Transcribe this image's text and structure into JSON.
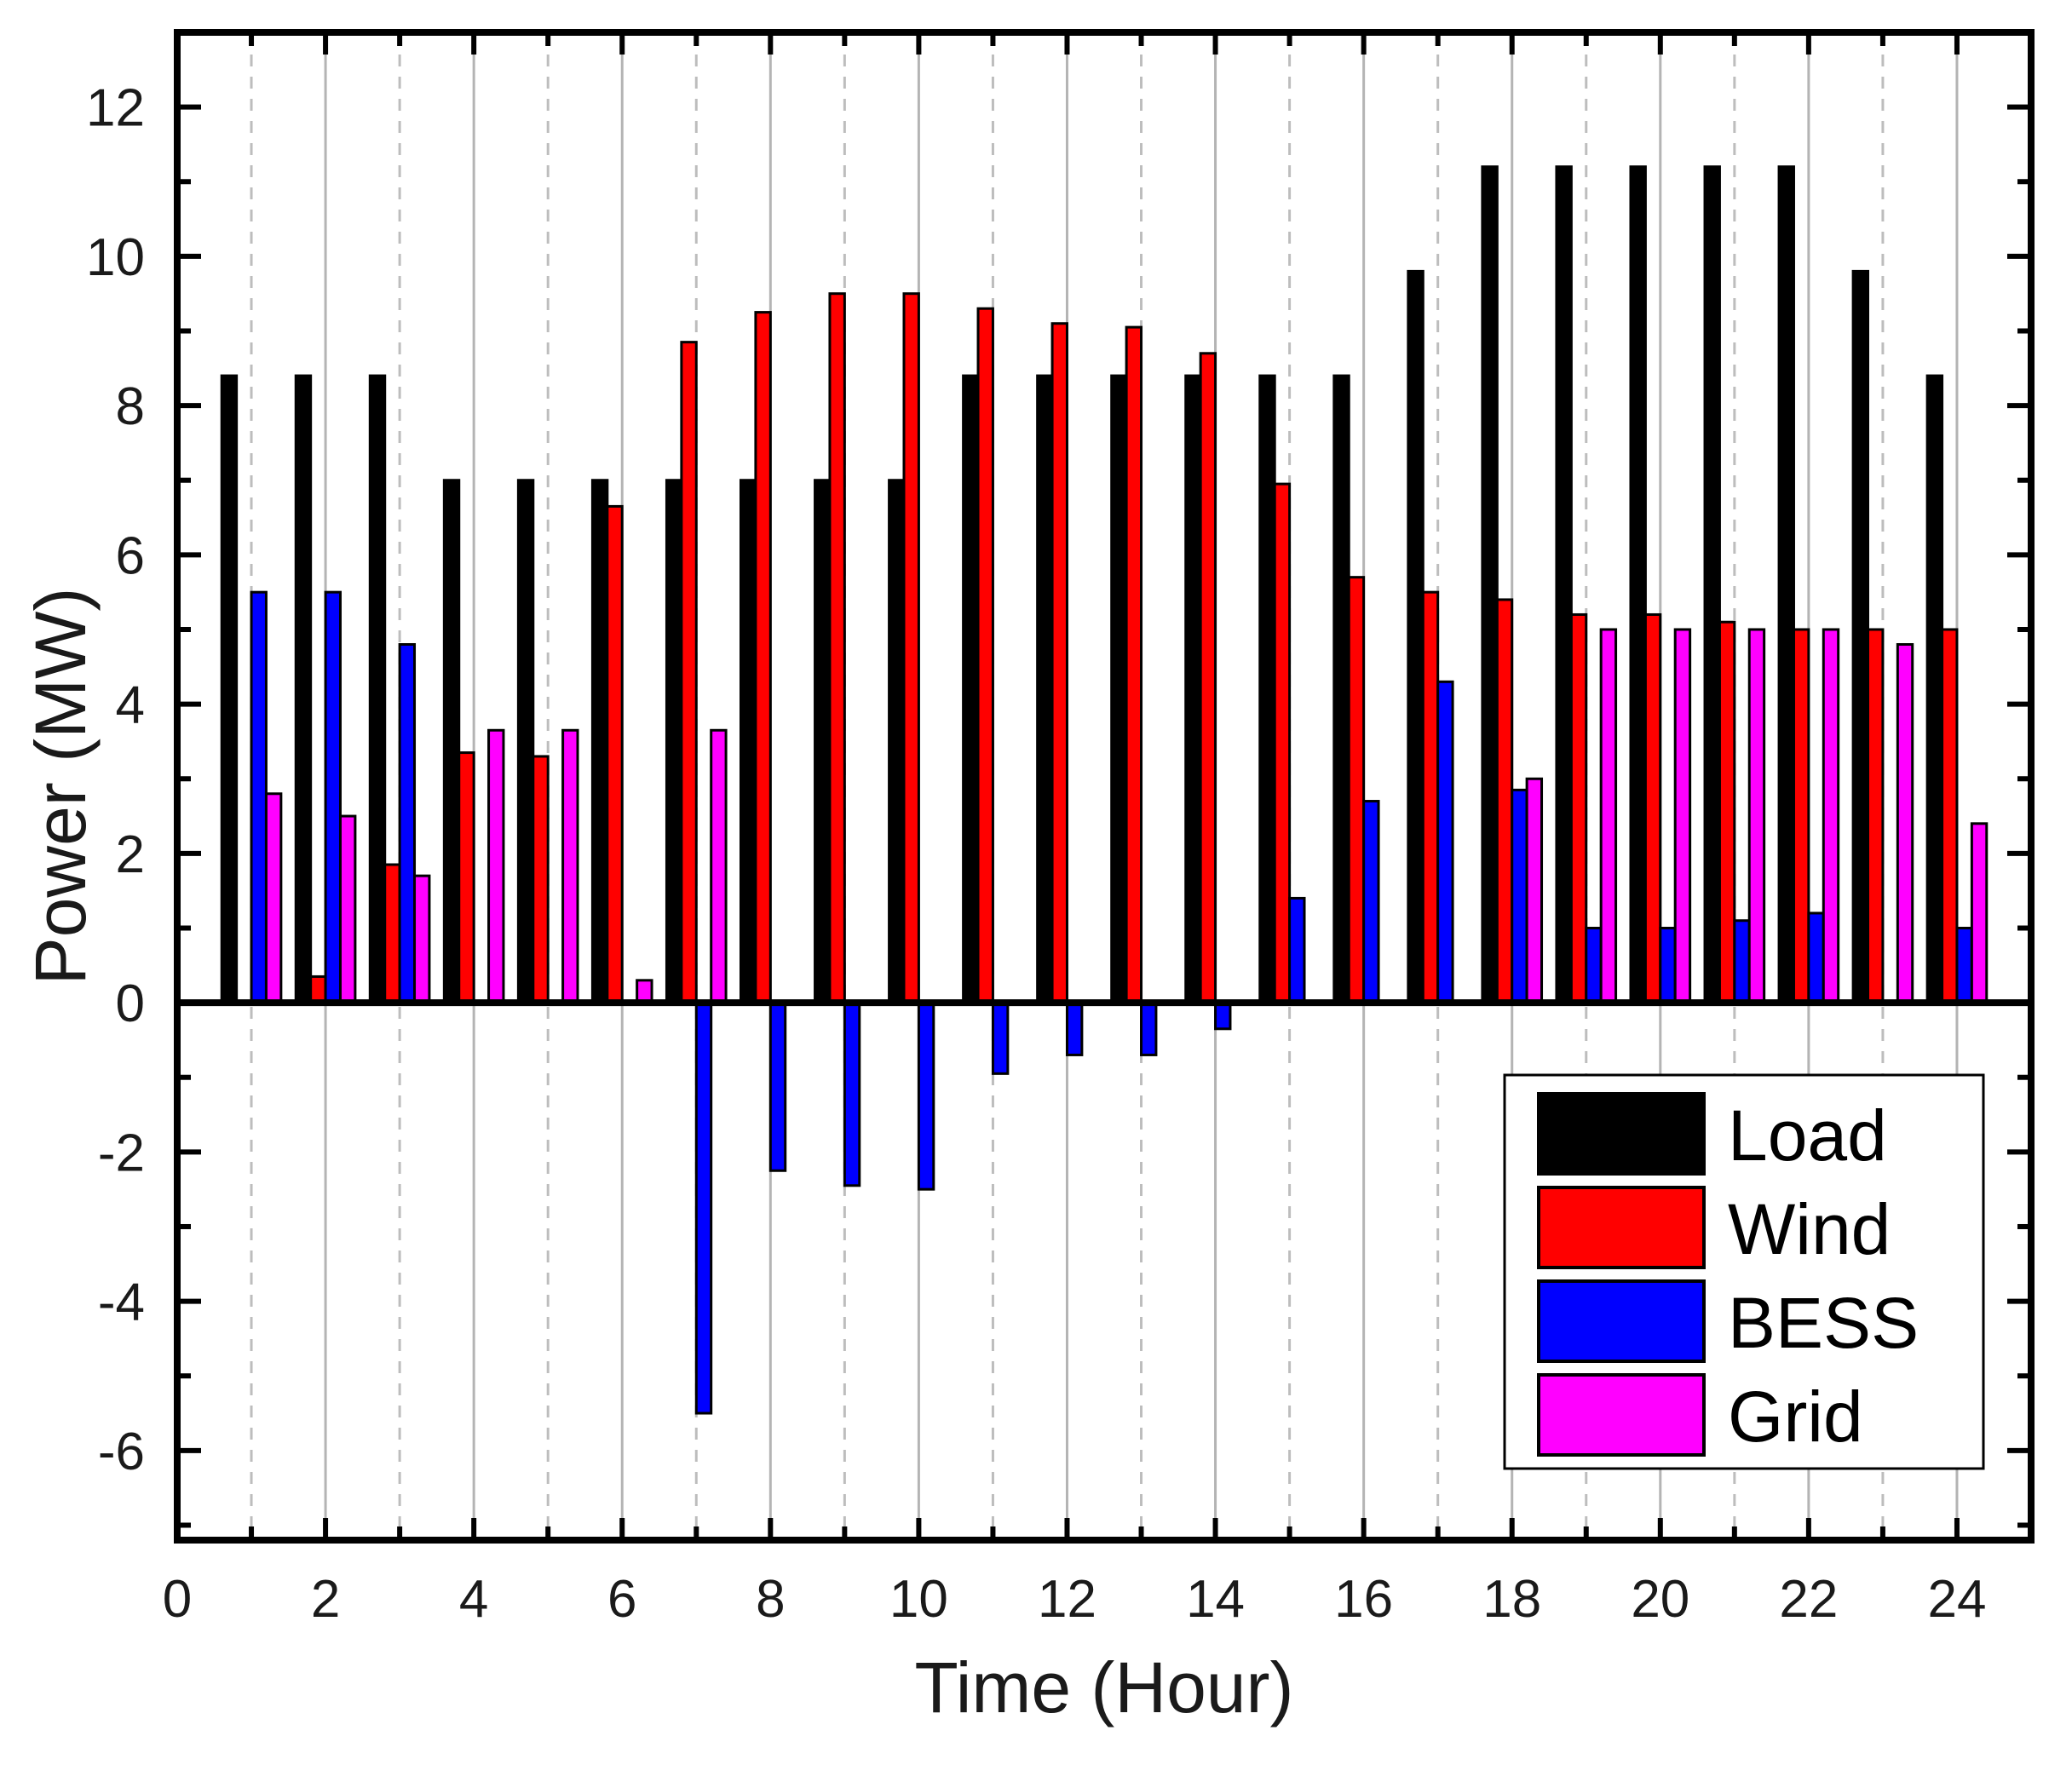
{
  "chart_data": {
    "type": "bar",
    "title": "",
    "xlabel": "Time (Hour)",
    "ylabel": "Power (MW)",
    "xlim": [
      0,
      25
    ],
    "ylim": [
      -7.2,
      13
    ],
    "x_ticks": [
      0,
      2,
      4,
      6,
      8,
      10,
      12,
      14,
      16,
      18,
      20,
      22,
      24
    ],
    "y_ticks": [
      -6,
      -4,
      -2,
      0,
      2,
      4,
      6,
      8,
      10,
      12
    ],
    "legend_position": "bottom-right",
    "categories": [
      1,
      2,
      3,
      4,
      5,
      6,
      7,
      8,
      9,
      10,
      11,
      12,
      13,
      14,
      15,
      16,
      17,
      18,
      19,
      20,
      21,
      22,
      23,
      24
    ],
    "series": [
      {
        "name": "Load",
        "color": "#000000",
        "values": [
          8.4,
          8.4,
          8.4,
          7.0,
          7.0,
          7.0,
          7.0,
          7.0,
          7.0,
          7.0,
          8.4,
          8.4,
          8.4,
          8.4,
          8.4,
          8.4,
          9.8,
          11.2,
          11.2,
          11.2,
          11.2,
          11.2,
          9.8,
          8.4
        ]
      },
      {
        "name": "Wind",
        "color": "#ff0000",
        "values": [
          0,
          0.35,
          1.85,
          3.35,
          3.3,
          6.65,
          8.85,
          9.25,
          9.5,
          9.5,
          9.3,
          9.1,
          9.05,
          8.7,
          6.95,
          5.7,
          5.5,
          5.4,
          5.2,
          5.2,
          5.1,
          5.0,
          5.0,
          5.0
        ]
      },
      {
        "name": "BESS",
        "color": "#0000ff",
        "values": [
          5.5,
          5.5,
          4.8,
          0,
          0,
          0,
          -5.5,
          -2.25,
          -2.45,
          -2.5,
          -0.95,
          -0.7,
          -0.7,
          -0.35,
          1.4,
          2.7,
          4.3,
          2.85,
          1.0,
          1.0,
          1.1,
          1.2,
          0,
          1.0
        ]
      },
      {
        "name": "Grid",
        "color": "#ff00ff",
        "values": [
          2.8,
          2.5,
          1.7,
          3.65,
          3.65,
          0.3,
          3.65,
          0,
          0,
          0,
          0,
          0,
          0,
          0,
          0,
          0,
          0,
          3.0,
          5.0,
          5.0,
          5.0,
          5.0,
          4.8,
          2.4
        ]
      }
    ]
  }
}
